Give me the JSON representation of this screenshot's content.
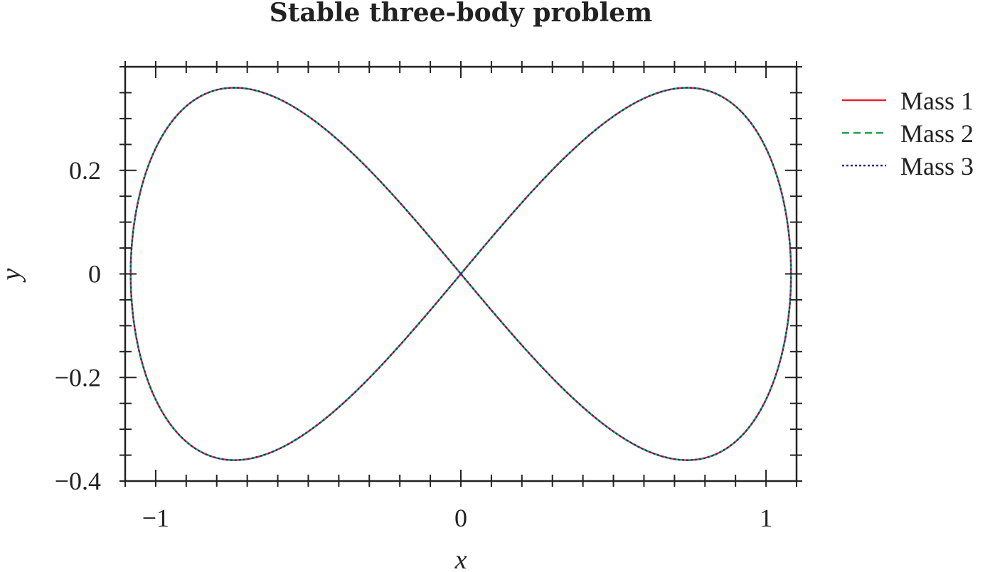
{
  "chart_data": {
    "type": "line",
    "title": "Stable three-body problem",
    "xlabel": "x",
    "ylabel": "y",
    "xlim": [
      -1.1,
      1.1
    ],
    "ylim": [
      -0.4,
      0.4
    ],
    "xticks": [
      -1,
      0,
      1
    ],
    "xtick_labels": [
      "−1",
      "0",
      "1"
    ],
    "yticks": [
      -0.4,
      -0.2,
      0,
      0.2
    ],
    "ytick_labels": [
      "−0.4",
      "−0.2",
      "0",
      "0.2"
    ],
    "grid": false,
    "legend_position": "outside-right-top",
    "curve": "figure-eight choreography",
    "x_extent": [
      -1.082,
      1.082
    ],
    "y_extent": [
      -0.359,
      0.359
    ],
    "lobe_extrema": [
      {
        "x": -0.67,
        "y": 0.359
      },
      {
        "x": 0.67,
        "y": 0.359
      },
      {
        "x": -0.67,
        "y": -0.359
      },
      {
        "x": 0.67,
        "y": -0.359
      }
    ],
    "series": [
      {
        "name": "Mass 1",
        "color": "#e8202a",
        "style": "solid"
      },
      {
        "name": "Mass 2",
        "color": "#1aa34a",
        "style": "dashed"
      },
      {
        "name": "Mass 3",
        "color": "#2a2a8c",
        "style": "dotted"
      }
    ]
  }
}
